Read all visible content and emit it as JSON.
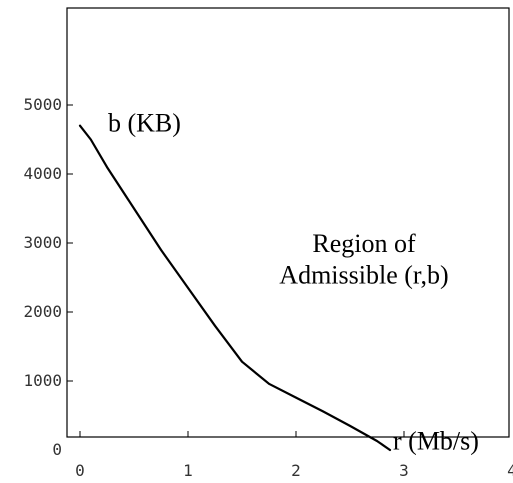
{
  "chart_data": {
    "type": "line",
    "title": "",
    "xlabel": "",
    "ylabel": "",
    "xlim": [
      0,
      4
    ],
    "ylim": [
      0,
      5000
    ],
    "x_ticks": [
      0,
      1,
      2,
      3,
      4
    ],
    "y_ticks": [
      0,
      1000,
      2000,
      3000,
      4000,
      5000
    ],
    "x_tick_labels": [
      "0",
      "1",
      "2",
      "3",
      "4"
    ],
    "y_tick_labels": [
      "0",
      "1000",
      "2000",
      "3000",
      "4000",
      "5000"
    ],
    "grid": false,
    "series": [
      {
        "color": "#000000",
        "points": [
          [
            0.0,
            4700
          ],
          [
            0.1,
            4500
          ],
          [
            0.25,
            4100
          ],
          [
            0.5,
            3500
          ],
          [
            0.75,
            2900
          ],
          [
            1.0,
            2350
          ],
          [
            1.25,
            1800
          ],
          [
            1.5,
            1280
          ],
          [
            1.75,
            960
          ],
          [
            2.0,
            760
          ],
          [
            2.25,
            560
          ],
          [
            2.5,
            350
          ],
          [
            2.75,
            130
          ],
          [
            2.87,
            0
          ]
        ]
      }
    ],
    "annotations": [
      {
        "text": "b (KB)",
        "x": 0.55,
        "y": 4750
      },
      {
        "text": "Region of",
        "x": 2.1,
        "y": 3000
      },
      {
        "text": "Admissible (r,b)",
        "x": 2.1,
        "y": 2540
      },
      {
        "text": "r (Mb/s)",
        "x": 3.4,
        "y": 140
      }
    ]
  }
}
